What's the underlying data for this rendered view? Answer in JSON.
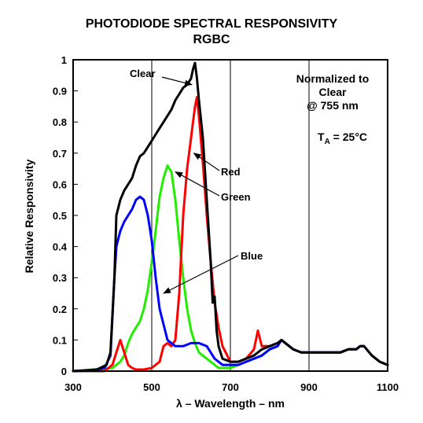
{
  "title": "PHOTODIODE SPECTRAL RESPONSIVITY",
  "subtitle": "RGBC",
  "note_lines": [
    "Normalized to",
    "Clear",
    "@ 755 nm"
  ],
  "temperature": {
    "prefix": "T",
    "subscript": "A",
    "value": " = 25°C"
  },
  "chart_data": {
    "type": "line",
    "xlabel": "λ – Wavelength – nm",
    "ylabel": "Relative Responsivity",
    "xlim": [
      300,
      1100
    ],
    "ylim": [
      0,
      1
    ],
    "xticks": [
      "300",
      "500",
      "700",
      "900",
      "1100"
    ],
    "yticks": [
      "0",
      "0.1",
      "0.2",
      "0.3",
      "0.4",
      "0.5",
      "0.6",
      "0.7",
      "0.8",
      "0.9",
      "1"
    ],
    "grid": "vertical lines at 500, 700 and 900 nm",
    "series": [
      {
        "name": "Clear",
        "color": "#000000",
        "x": [
          300,
          340,
          360,
          385,
          395,
          405,
          410,
          420,
          430,
          440,
          450,
          460,
          470,
          480,
          490,
          500,
          510,
          520,
          530,
          540,
          550,
          560,
          570,
          580,
          590,
          600,
          605,
          610,
          615,
          620,
          630,
          640,
          650,
          655,
          660,
          665,
          670,
          680,
          700,
          720,
          740,
          760,
          780,
          800,
          820,
          830,
          840,
          860,
          880,
          900,
          920,
          940,
          960,
          980,
          1000,
          1020,
          1030,
          1040,
          1060,
          1080,
          1100
        ],
        "y": [
          0,
          0.002,
          0.005,
          0.02,
          0.06,
          0.3,
          0.5,
          0.55,
          0.58,
          0.6,
          0.62,
          0.66,
          0.69,
          0.7,
          0.72,
          0.74,
          0.76,
          0.78,
          0.8,
          0.82,
          0.84,
          0.87,
          0.89,
          0.91,
          0.92,
          0.94,
          0.97,
          0.99,
          0.94,
          0.87,
          0.75,
          0.55,
          0.35,
          0.22,
          0.24,
          0.13,
          0.08,
          0.04,
          0.03,
          0.03,
          0.04,
          0.05,
          0.07,
          0.08,
          0.09,
          0.1,
          0.09,
          0.07,
          0.06,
          0.06,
          0.06,
          0.06,
          0.06,
          0.06,
          0.07,
          0.07,
          0.08,
          0.08,
          0.05,
          0.03,
          0.02
        ]
      },
      {
        "name": "Red",
        "color": "#ff0000",
        "x": [
          300,
          380,
          400,
          410,
          420,
          430,
          440,
          450,
          460,
          480,
          500,
          520,
          530,
          540,
          550,
          560,
          570,
          580,
          590,
          600,
          610,
          615,
          620,
          630,
          640,
          650,
          660,
          670,
          680,
          700,
          720,
          740,
          760,
          770,
          780,
          800,
          820,
          830,
          840,
          860,
          880,
          900,
          920,
          940,
          960,
          980,
          1000,
          1020,
          1030,
          1040,
          1060,
          1080,
          1100
        ],
        "y": [
          0,
          0,
          0.02,
          0.06,
          0.1,
          0.06,
          0.02,
          0.01,
          0.005,
          0.005,
          0.01,
          0.03,
          0.08,
          0.09,
          0.08,
          0.1,
          0.25,
          0.5,
          0.65,
          0.75,
          0.85,
          0.88,
          0.82,
          0.67,
          0.5,
          0.35,
          0.22,
          0.14,
          0.08,
          0.03,
          0.03,
          0.04,
          0.07,
          0.13,
          0.08,
          0.08,
          0.09,
          0.1,
          0.09,
          0.07,
          0.06,
          0.06,
          0.06,
          0.06,
          0.06,
          0.06,
          0.07,
          0.07,
          0.08,
          0.08,
          0.05,
          0.03,
          0.02
        ]
      },
      {
        "name": "Green",
        "color": "#22ee00",
        "x": [
          300,
          400,
          410,
          420,
          430,
          440,
          450,
          460,
          470,
          480,
          490,
          500,
          510,
          520,
          530,
          540,
          550,
          560,
          570,
          580,
          590,
          600,
          610,
          620,
          630,
          640,
          650,
          660,
          670,
          680,
          700,
          720,
          740,
          760,
          780,
          800,
          820,
          830,
          840,
          860,
          880,
          900,
          920,
          940,
          960,
          980,
          1000,
          1020,
          1030,
          1040,
          1060,
          1080,
          1100
        ],
        "y": [
          0,
          0.01,
          0.02,
          0.03,
          0.05,
          0.09,
          0.12,
          0.14,
          0.16,
          0.2,
          0.26,
          0.35,
          0.45,
          0.56,
          0.62,
          0.66,
          0.64,
          0.55,
          0.42,
          0.3,
          0.2,
          0.13,
          0.09,
          0.06,
          0.05,
          0.04,
          0.03,
          0.02,
          0.01,
          0.01,
          0.01,
          0.02,
          0.03,
          0.04,
          0.05,
          0.07,
          0.08,
          0.1,
          0.09,
          0.07,
          0.06,
          0.06,
          0.06,
          0.06,
          0.06,
          0.06,
          0.07,
          0.07,
          0.08,
          0.08,
          0.05,
          0.03,
          0.02
        ]
      },
      {
        "name": "Blue",
        "color": "#0000ff",
        "x": [
          300,
          360,
          380,
          395,
          405,
          410,
          420,
          430,
          440,
          450,
          460,
          470,
          480,
          490,
          500,
          510,
          520,
          530,
          540,
          560,
          580,
          600,
          620,
          640,
          660,
          680,
          700,
          720,
          740,
          760,
          780,
          800,
          820,
          830,
          840,
          860,
          880,
          900,
          920,
          940,
          960,
          980,
          1000,
          1020,
          1030,
          1040,
          1060,
          1080,
          1100
        ],
        "y": [
          0,
          0.005,
          0.01,
          0.05,
          0.3,
          0.4,
          0.45,
          0.48,
          0.5,
          0.52,
          0.55,
          0.56,
          0.55,
          0.5,
          0.42,
          0.3,
          0.2,
          0.15,
          0.1,
          0.08,
          0.08,
          0.09,
          0.09,
          0.08,
          0.04,
          0.02,
          0.02,
          0.02,
          0.03,
          0.04,
          0.05,
          0.07,
          0.08,
          0.1,
          0.09,
          0.07,
          0.06,
          0.06,
          0.06,
          0.06,
          0.06,
          0.06,
          0.07,
          0.07,
          0.08,
          0.08,
          0.05,
          0.03,
          0.02
        ]
      }
    ],
    "annotations": [
      {
        "label": "Clear",
        "target_x": 602,
        "target_y": 0.92
      },
      {
        "label": "Red",
        "target_x": 607,
        "target_y": 0.7
      },
      {
        "label": "Green",
        "target_x": 560,
        "target_y": 0.64
      },
      {
        "label": "Blue",
        "target_x": 530,
        "target_y": 0.25
      }
    ]
  }
}
